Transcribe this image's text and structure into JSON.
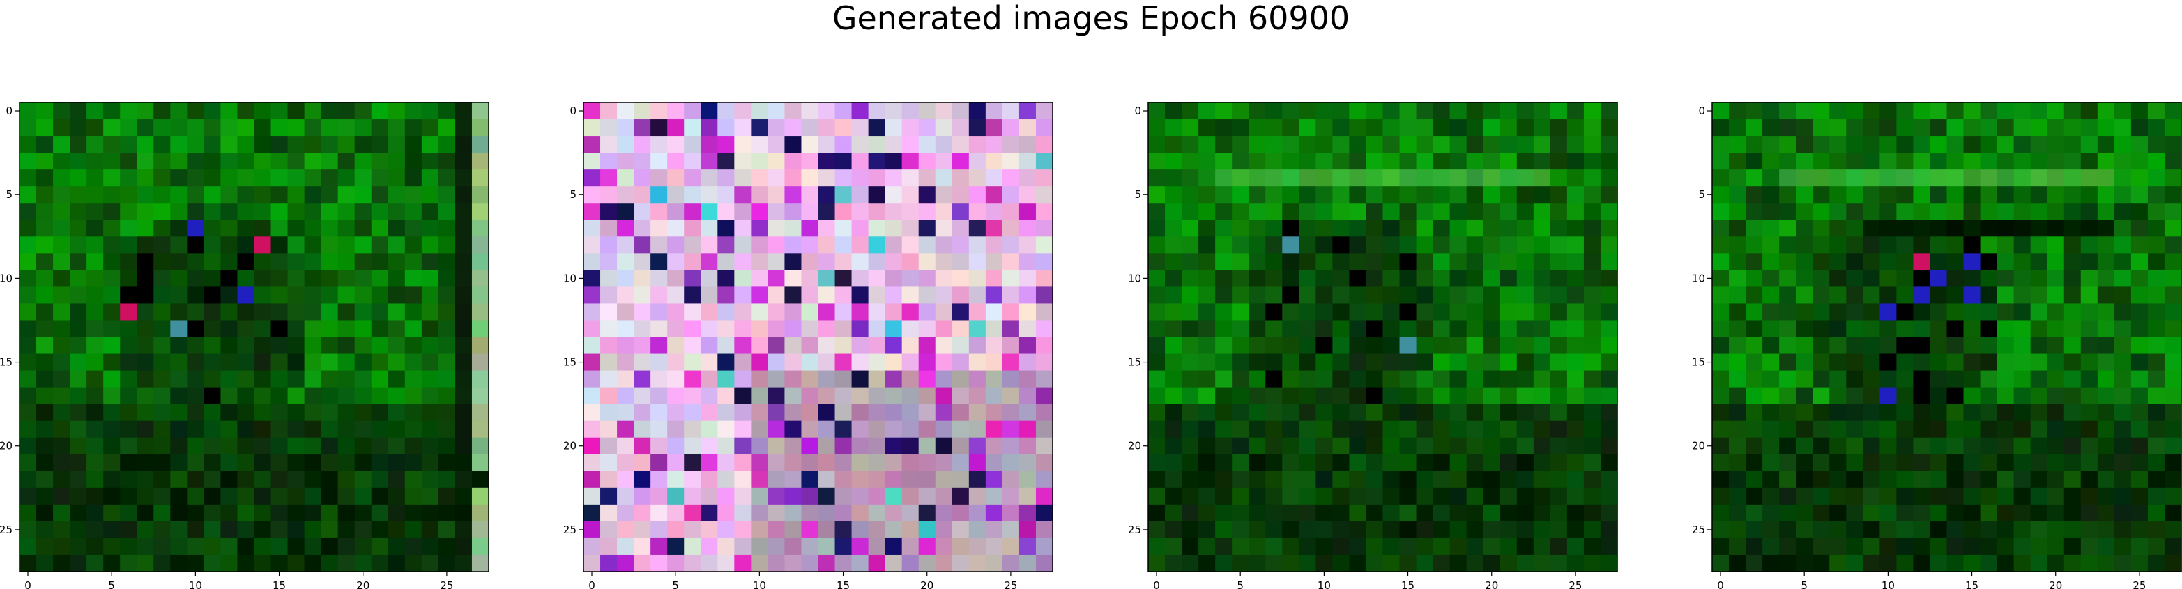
{
  "title": "Generated images Epoch 60900",
  "chart_data": [
    {
      "type": "heatmap",
      "content": "28x28 RGB image, predominantly green pixels with a dark central blob and a few magenta/blue/red pixels; light gray-green column at far right",
      "palette": [
        "#0a6a0a",
        "#0c8a12",
        "#064006",
        "#022402",
        "#000000",
        "#6fb06f",
        "#d01050",
        "#1a1ac8",
        "#d8c0d8"
      ],
      "grid_size": [
        28,
        28
      ],
      "x_ticks": [
        0,
        5,
        10,
        15,
        20,
        25
      ],
      "y_ticks": [
        0,
        5,
        10,
        15,
        20,
        25
      ],
      "xlim": [
        -0.5,
        27.5
      ],
      "ylim": [
        27.5,
        -0.5
      ]
    },
    {
      "type": "heatmap",
      "content": "28x28 RGB image of noisy pastel pixels: pinks, lavenders, light purples, white, with scattered dark navy and magenta pixels",
      "palette": [
        "#e8b8e8",
        "#d090d8",
        "#b070c0",
        "#f0d8f0",
        "#c0c0e8",
        "#e070c0",
        "#8030a0",
        "#101040",
        "#20c8c8"
      ],
      "grid_size": [
        28,
        28
      ],
      "x_ticks": [
        0,
        5,
        10,
        15,
        20,
        25
      ],
      "y_ticks": [
        0,
        5,
        10,
        15,
        20,
        25
      ],
      "xlim": [
        -0.5,
        27.5
      ],
      "ylim": [
        27.5,
        -0.5
      ]
    },
    {
      "type": "heatmap",
      "content": "28x28 RGB image, green pixels with a horizontal light-green band near row 4, dark center and a few magenta/blue/teal pixels",
      "palette": [
        "#0a6a0a",
        "#0c8a12",
        "#064006",
        "#022402",
        "#000000",
        "#2aa030",
        "#d01070",
        "#2020b0",
        "#106060"
      ],
      "grid_size": [
        28,
        28
      ],
      "x_ticks": [
        0,
        5,
        10,
        15,
        20,
        25
      ],
      "y_ticks": [
        0,
        5,
        10,
        15,
        20,
        25
      ],
      "xlim": [
        -0.5,
        27.5
      ],
      "ylim": [
        27.5,
        -0.5
      ]
    },
    {
      "type": "heatmap",
      "content": "28x28 RGB image, green pixels with a light-green band near row 4, dark horizontal band near row 7, central magenta/blue/teal pixels",
      "palette": [
        "#0a6a0a",
        "#0c8a12",
        "#064006",
        "#022402",
        "#000000",
        "#2aa030",
        "#d01070",
        "#2020c0",
        "#60c0c0"
      ],
      "grid_size": [
        28,
        28
      ],
      "x_ticks": [
        0,
        5,
        10,
        15,
        20,
        25
      ],
      "y_ticks": [
        0,
        5,
        10,
        15,
        20,
        25
      ],
      "xlim": [
        -0.5,
        27.5
      ],
      "ylim": [
        27.5,
        -0.5
      ]
    }
  ]
}
